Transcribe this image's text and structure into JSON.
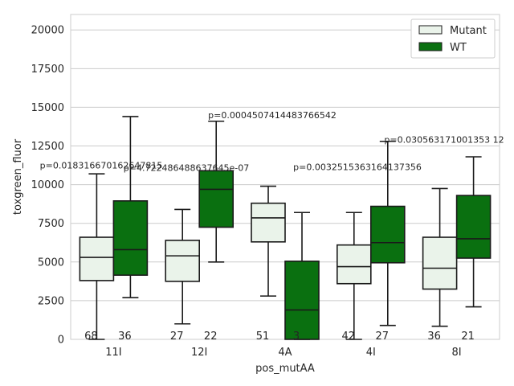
{
  "chart_data": {
    "type": "box",
    "xlabel": "pos_mutAA",
    "ylabel": "toxgreen_fluor",
    "categories": [
      "11I",
      "12I",
      "4A",
      "4I",
      "8I"
    ],
    "ylim": [
      0,
      21000
    ],
    "yticks": [
      0,
      2500,
      5000,
      7500,
      10000,
      12500,
      15000,
      17500,
      20000
    ],
    "yticklabels": [
      "0",
      "2500",
      "5000",
      "7500",
      "10000",
      "12500",
      "15000",
      "17500",
      "20000"
    ],
    "grid": true,
    "legend_position": "top-right",
    "colors": {
      "Mutant": "#eaf3ea",
      "WT": "#0a7010",
      "edge": "#1a1a1a",
      "grid": "#cccccc"
    },
    "series": [
      {
        "name": "Mutant",
        "boxes": [
          {
            "q1": 3800,
            "median": 5300,
            "q3": 6600,
            "whislo": 0,
            "whishi": 10700,
            "n": "68"
          },
          {
            "q1": 3750,
            "median": 5400,
            "q3": 6400,
            "whislo": 1000,
            "whishi": 8400,
            "n": "27"
          },
          {
            "q1": 6300,
            "median": 7850,
            "q3": 8800,
            "whislo": 2800,
            "whishi": 9900,
            "n": "51"
          },
          {
            "q1": 3600,
            "median": 4700,
            "q3": 6100,
            "whislo": 0,
            "whishi": 8200,
            "n": "42"
          },
          {
            "q1": 3250,
            "median": 4600,
            "q3": 6600,
            "whislo": 850,
            "whishi": 9750,
            "n": "36"
          }
        ]
      },
      {
        "name": "WT",
        "boxes": [
          {
            "q1": 4150,
            "median": 5800,
            "q3": 8950,
            "whislo": 2700,
            "whishi": 14400,
            "n": "36"
          },
          {
            "q1": 7250,
            "median": 9700,
            "q3": 10900,
            "whislo": 5000,
            "whishi": 14100,
            "n": "22"
          },
          {
            "q1": 0,
            "median": 1900,
            "q3": 5050,
            "whislo": 0,
            "whishi": 8200,
            "n": "3"
          },
          {
            "q1": 4950,
            "median": 6250,
            "q3": 8600,
            "whislo": 900,
            "whishi": 12800,
            "n": "27"
          },
          {
            "q1": 5250,
            "median": 6500,
            "q3": 9300,
            "whislo": 2100,
            "whishi": 11800,
            "n": "21"
          }
        ]
      }
    ],
    "pvalues": [
      {
        "category": "11I",
        "text": "p=0.018316670162647815",
        "y": 11050
      },
      {
        "category": "11I",
        "text": "p=4.722486488637645e-07",
        "y": 10900
      },
      {
        "category": "4A",
        "text": "p=0.0004507414483766542",
        "y": 14300
      },
      {
        "category": "4A",
        "text": "p=0.0032515363164137356",
        "y": 10950
      },
      {
        "category": "8I",
        "text": "p=0.030563171001353 12",
        "y": 12700
      }
    ]
  }
}
